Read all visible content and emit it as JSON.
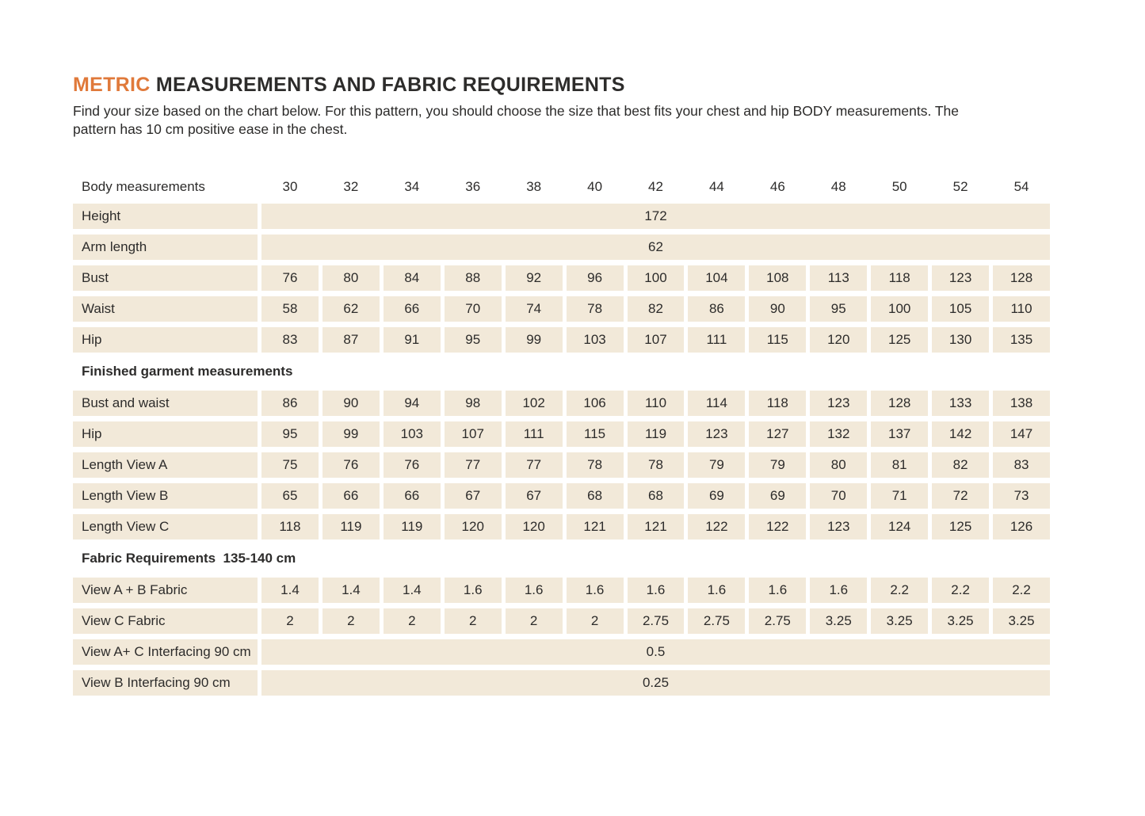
{
  "header": {
    "title_highlight": "METRIC",
    "title_rest": "MEASUREMENTS AND FABRIC REQUIREMENTS",
    "intro": "Find your size based on the chart below. For this pattern, you should choose the size that best fits your chest and hip BODY measurements. The pattern has 10 cm positive ease in the chest."
  },
  "colors": {
    "accent_orange": "#e0793a",
    "cell_beige": "#f2e9d9",
    "text_dark": "#2d2c2b"
  },
  "table": {
    "header_label": "Body measurements",
    "sizes": [
      "30",
      "32",
      "34",
      "36",
      "38",
      "40",
      "42",
      "44",
      "46",
      "48",
      "50",
      "52",
      "54"
    ],
    "rows": [
      {
        "type": "span",
        "label": "Height",
        "value": "172"
      },
      {
        "type": "span",
        "label": "Arm length",
        "value": "62"
      },
      {
        "type": "data",
        "label": "Bust",
        "values": [
          "76",
          "80",
          "84",
          "88",
          "92",
          "96",
          "100",
          "104",
          "108",
          "113",
          "118",
          "123",
          "128"
        ]
      },
      {
        "type": "data",
        "label": "Waist",
        "values": [
          "58",
          "62",
          "66",
          "70",
          "74",
          "78",
          "82",
          "86",
          "90",
          "95",
          "100",
          "105",
          "110"
        ]
      },
      {
        "type": "data",
        "label": "Hip",
        "values": [
          "83",
          "87",
          "91",
          "95",
          "99",
          "103",
          "107",
          "111",
          "115",
          "120",
          "125",
          "130",
          "135"
        ]
      },
      {
        "type": "section",
        "label": "Finished garment measurements"
      },
      {
        "type": "data",
        "label": "Bust and waist",
        "values": [
          "86",
          "90",
          "94",
          "98",
          "102",
          "106",
          "110",
          "114",
          "118",
          "123",
          "128",
          "133",
          "138"
        ]
      },
      {
        "type": "data",
        "label": "Hip",
        "values": [
          "95",
          "99",
          "103",
          "107",
          "111",
          "115",
          "119",
          "123",
          "127",
          "132",
          "137",
          "142",
          "147"
        ]
      },
      {
        "type": "data",
        "label": "Length View A",
        "values": [
          "75",
          "76",
          "76",
          "77",
          "77",
          "78",
          "78",
          "79",
          "79",
          "80",
          "81",
          "82",
          "83"
        ]
      },
      {
        "type": "data",
        "label": "Length View B",
        "values": [
          "65",
          "66",
          "66",
          "67",
          "67",
          "68",
          "68",
          "69",
          "69",
          "70",
          "71",
          "72",
          "73"
        ]
      },
      {
        "type": "data",
        "label": "Length View C",
        "values": [
          "118",
          "119",
          "119",
          "120",
          "120",
          "121",
          "121",
          "122",
          "122",
          "123",
          "124",
          "125",
          "126"
        ]
      },
      {
        "type": "section",
        "label": "Fabric Requirements  135-140 cm"
      },
      {
        "type": "data",
        "label": "View A + B Fabric",
        "values": [
          "1.4",
          "1.4",
          "1.4",
          "1.6",
          "1.6",
          "1.6",
          "1.6",
          "1.6",
          "1.6",
          "1.6",
          "2.2",
          "2.2",
          "2.2"
        ]
      },
      {
        "type": "data",
        "label": "View C Fabric",
        "values": [
          "2",
          "2",
          "2",
          "2",
          "2",
          "2",
          "2.75",
          "2.75",
          "2.75",
          "3.25",
          "3.25",
          "3.25",
          "3.25"
        ]
      },
      {
        "type": "span",
        "label": "View A+ C Interfacing 90 cm",
        "value": "0.5"
      },
      {
        "type": "span",
        "label": "View B Interfacing 90 cm",
        "value": "0.25"
      }
    ]
  }
}
